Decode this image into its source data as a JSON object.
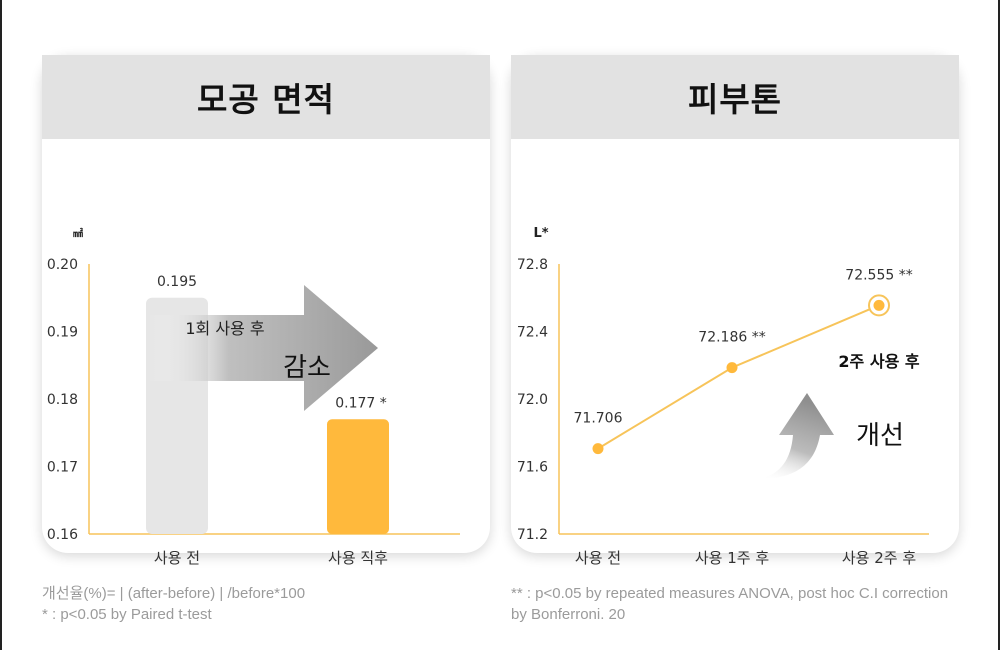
{
  "colors": {
    "accent": "#FFB93C",
    "line": "#F7C45A",
    "bar_before": "#E6E6E6",
    "header_bg": "#E2E2E2",
    "arrow": "#9E9E9E"
  },
  "left_card": {
    "title": "모공 면적",
    "unit": "㎟",
    "arrow_text_1": "1회 사용 후",
    "arrow_text_2": "감소"
  },
  "right_card": {
    "title": "피부톤",
    "unit": "L*",
    "annotation_1": "2주 사용 후",
    "annotation_2": "개선"
  },
  "chart_data": [
    {
      "type": "bar",
      "title": "모공 면적",
      "ylabel": "㎟",
      "categories": [
        "사용 전",
        "사용 직후"
      ],
      "values": [
        0.195,
        0.177
      ],
      "value_labels": [
        "0.195",
        "0.177 *"
      ],
      "ylim": [
        0.16,
        0.2
      ],
      "yticks": [
        "0.20",
        "0.19",
        "0.18",
        "0.17",
        "0.16"
      ],
      "grid": false
    },
    {
      "type": "line",
      "title": "피부톤",
      "ylabel": "L*",
      "categories": [
        "사용 전",
        "사용 1주 후",
        "사용 2주 후"
      ],
      "values": [
        71.706,
        72.186,
        72.555
      ],
      "value_labels": [
        "71.706",
        "72.186 **",
        "72.555 **"
      ],
      "ylim": [
        71.2,
        72.8
      ],
      "yticks": [
        "72.8",
        "72.4",
        "72.0",
        "71.6",
        "71.2"
      ],
      "grid": false
    }
  ],
  "footnotes": {
    "left_1": "개선율(%)= | (after-before) | /before*100",
    "left_2": "* : p<0.05 by Paired t-test",
    "right_1": "** : p<0.05 by repeated measures ANOVA, post hoc C.I correction",
    "right_2": "by Bonferroni. 20"
  }
}
